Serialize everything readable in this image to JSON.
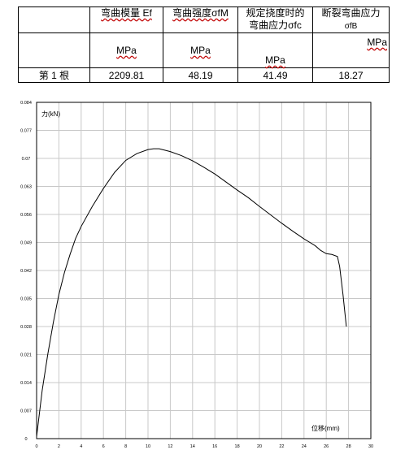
{
  "table": {
    "header": {
      "row_label": "",
      "col1": "弯曲模量 Ef",
      "col2": "弯曲强度σfM",
      "col3_line1": "规定挠度时的",
      "col3_line2": "弯曲应力σfc",
      "col4_line1": "断裂弯曲应力",
      "col4_line2": "σfB"
    },
    "units": {
      "col1": "MPa",
      "col2": "MPa",
      "col3": "MPa",
      "col4": "MPa"
    },
    "row": {
      "label": "第 1 根",
      "col1": "2209.81",
      "col2": "48.19",
      "col3": "41.49",
      "col4": "18.27"
    }
  },
  "chart_data": {
    "type": "line",
    "title": "",
    "xlabel": "位移(mm)",
    "ylabel": "力(kN)",
    "xlim": [
      0,
      30
    ],
    "ylim": [
      0,
      0.084
    ],
    "x_ticks": [
      "0",
      "2",
      "4",
      "6",
      "8",
      "10",
      "12",
      "14",
      "16",
      "18",
      "20",
      "22",
      "24",
      "26",
      "28",
      "30"
    ],
    "y_ticks": [
      "0",
      "0.007",
      "0.014",
      "0.021",
      "0.028",
      "0.035",
      "0.042",
      "0.049",
      "0.056",
      "0.063",
      "0.07",
      "0.077",
      "0.084"
    ],
    "grid": true,
    "series": [
      {
        "x": [
          0,
          0.5,
          1,
          1.5,
          2,
          2.5,
          3,
          3.5,
          4,
          5,
          6,
          7,
          8,
          9,
          10,
          10.5,
          11,
          12,
          13,
          14,
          15,
          16,
          17,
          18,
          19,
          20,
          21,
          22,
          23,
          24,
          25,
          25.5,
          26,
          26.5,
          27,
          27.2,
          27.5,
          27.8
        ],
        "y": [
          0.0005,
          0.012,
          0.021,
          0.029,
          0.036,
          0.0415,
          0.046,
          0.05,
          0.053,
          0.058,
          0.0625,
          0.0665,
          0.0695,
          0.0712,
          0.0722,
          0.0724,
          0.0724,
          0.0717,
          0.0707,
          0.0694,
          0.0678,
          0.0661,
          0.0641,
          0.0621,
          0.0602,
          0.058,
          0.0559,
          0.0538,
          0.0518,
          0.0499,
          0.0482,
          0.047,
          0.0462,
          0.046,
          0.0455,
          0.043,
          0.036,
          0.028
        ]
      }
    ]
  }
}
